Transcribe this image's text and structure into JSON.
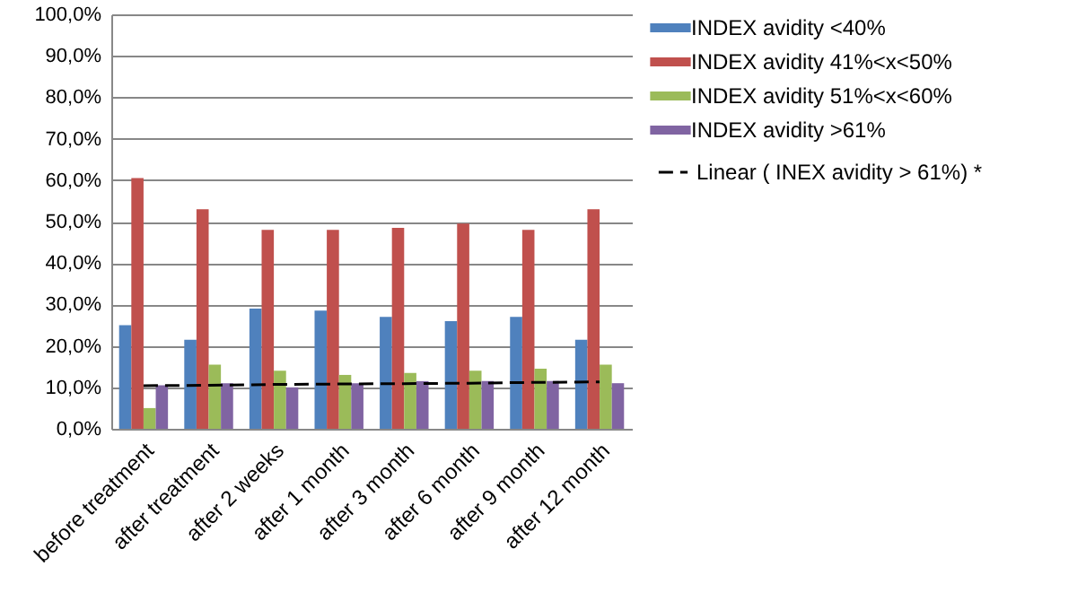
{
  "chart_data": {
    "type": "bar",
    "categories": [
      "before treatment",
      "after treatment",
      "after 2 weeks",
      "after 1  month",
      "after 3  month",
      "after 6  month",
      "after 9  month",
      "after 12  month"
    ],
    "series": [
      {
        "name": "INDEX avidity <40%",
        "color": "#4f81bd",
        "values": [
          25,
          21.5,
          29,
          28.5,
          27,
          26,
          27,
          21.5
        ]
      },
      {
        "name": "INDEX avidity 41%<x<50%",
        "color": "#c0504d",
        "values": [
          60.5,
          53,
          48,
          48,
          48.5,
          49.5,
          48,
          53
        ]
      },
      {
        "name": "INDEX avidity 51%<x<60%",
        "color": "#9bbb59",
        "values": [
          5,
          15.5,
          14,
          13,
          13.5,
          14,
          14.5,
          15.5
        ]
      },
      {
        "name": "INDEX avidity >61%",
        "color": "#8064a2",
        "values": [
          10.5,
          11,
          10,
          11,
          11.5,
          11.5,
          11.5,
          11
        ]
      },
      {
        "name": "Linear ( INEX avidity > 61%) *",
        "type": "line",
        "color": "#000000",
        "line_style": "dashed",
        "marker": "none",
        "values": [
          10.4,
          10.5,
          10.7,
          10.8,
          10.9,
          11.0,
          11.2,
          11.3
        ]
      }
    ],
    "ylim": [
      0,
      100
    ],
    "yticks": [
      {
        "value": 0,
        "label": "0,0%"
      },
      {
        "value": 10,
        "label": "10,0%"
      },
      {
        "value": 20,
        "label": "20,0%"
      },
      {
        "value": 30,
        "label": "30,0%"
      },
      {
        "value": 40,
        "label": "40,0%"
      },
      {
        "value": 50,
        "label": "50,0%"
      },
      {
        "value": 60,
        "label": "60,0%"
      },
      {
        "value": 70,
        "label": "70,0%"
      },
      {
        "value": 80,
        "label": "80,0%"
      },
      {
        "value": 90,
        "label": "90,0%"
      },
      {
        "value": 100,
        "label": "100,0%"
      }
    ],
    "grid": "y",
    "legend": "right"
  }
}
